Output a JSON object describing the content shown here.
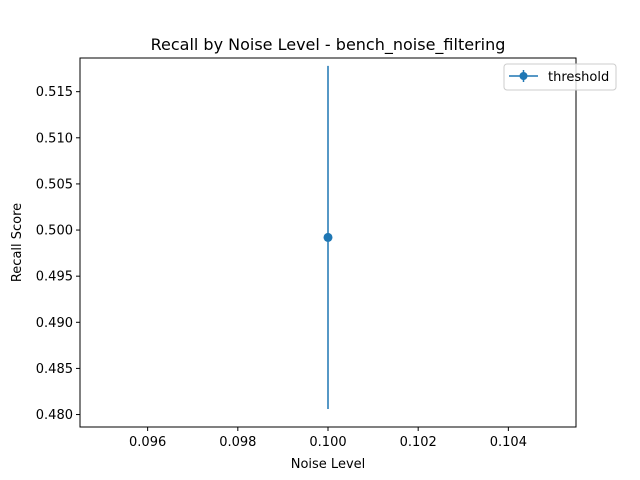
{
  "chart_data": {
    "type": "scatter",
    "title": "Recall by Noise Level - bench_noise_filtering",
    "xlabel": "Noise Level",
    "ylabel": "Recall Score",
    "xlim": [
      0.0945,
      0.1055
    ],
    "ylim": [
      0.47865,
      0.51865
    ],
    "x_ticks": [
      0.096,
      0.098,
      0.1,
      0.102,
      0.104
    ],
    "x_tick_labels": [
      "0.096",
      "0.098",
      "0.100",
      "0.102",
      "0.104"
    ],
    "y_ticks": [
      0.48,
      0.485,
      0.49,
      0.495,
      0.5,
      0.505,
      0.51,
      0.515
    ],
    "y_tick_labels": [
      "0.480",
      "0.485",
      "0.490",
      "0.495",
      "0.500",
      "0.505",
      "0.510",
      "0.515"
    ],
    "grid": false,
    "legend_position": "top-right",
    "series": [
      {
        "name": "threshold",
        "color": "#1f77b4",
        "points": [
          {
            "x": 0.1,
            "y": 0.4992,
            "yerr": 0.0186
          }
        ]
      }
    ]
  }
}
